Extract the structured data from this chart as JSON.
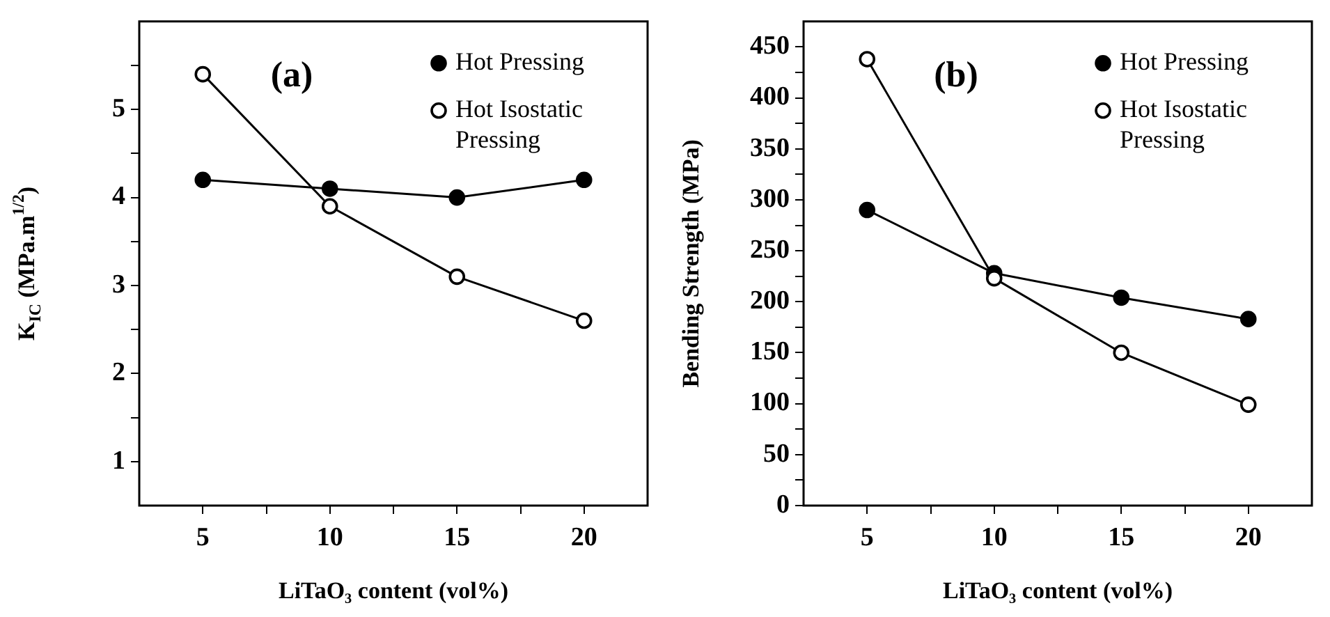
{
  "chart_data": [
    {
      "type": "line",
      "title": "(a)",
      "xlabel": "LiTaO₃ content (vol%)",
      "ylabel": "K$_{IC}$ (MPa.m$^{1/2}$)",
      "x": [
        5,
        10,
        15,
        20
      ],
      "series": [
        {
          "name": "Hot Pressing",
          "color": "#000000",
          "values": [
            4.2,
            4.1,
            4.0,
            4.2
          ]
        },
        {
          "name": "Hot Isostatic Pressing",
          "color": "#000000",
          "values": [
            5.4,
            3.9,
            3.1,
            2.6
          ]
        }
      ],
      "xlim": [
        2.5,
        22.5
      ],
      "xticks": [
        5,
        {
          "value": 7.5,
          "label": null
        },
        10,
        {
          "value": 12.5,
          "label": null
        },
        15,
        {
          "value": 17.5,
          "label": null
        },
        20
      ],
      "ylim": [
        0.5,
        6
      ],
      "yticks": [
        1,
        {
          "value": 1.5,
          "label": null
        },
        2,
        {
          "value": 2.5,
          "label": null
        },
        3,
        {
          "value": 3.5,
          "label": null
        },
        4,
        {
          "value": 4.5,
          "label": null
        },
        5,
        {
          "value": 5.5,
          "label": null
        }
      ],
      "legend": "top right",
      "marker": "circle"
    },
    {
      "type": "line",
      "title": "(b)",
      "xlabel": "LiTaO₃ content (vol%)",
      "ylabel": "Bending Strength (MPa)",
      "x": [
        5,
        10,
        15,
        20
      ],
      "series": [
        {
          "name": "Hot Pressing",
          "color": "#000000",
          "values": [
            290,
            228,
            204,
            183
          ]
        },
        {
          "name": "Hot Isostatic Pressing",
          "color": "#000000",
          "values": [
            438,
            223,
            150,
            99
          ]
        }
      ],
      "xlim": [
        2.5,
        22.5
      ],
      "xticks": [
        5,
        {
          "value": 7.5,
          "label": null
        },
        10,
        {
          "value": 12.5,
          "label": null
        },
        15,
        {
          "value": 17.5,
          "label": null
        },
        20
      ],
      "ylim": [
        0,
        475
      ],
      "yticks": [
        0,
        {
          "value": 25,
          "label": null
        },
        50,
        {
          "value": 75,
          "label": null
        },
        100,
        {
          "value": 125,
          "label": null
        },
        150,
        {
          "value": 175,
          "label": null
        },
        200,
        {
          "value": 225,
          "label": null
        },
        250,
        {
          "value": 275,
          "label": null
        },
        300,
        {
          "value": 325,
          "label": null
        },
        350,
        {
          "value": 375,
          "label": null
        },
        400,
        {
          "value": 425,
          "label": null
        },
        450
      ],
      "legend": "top right",
      "marker": "circle"
    }
  ]
}
